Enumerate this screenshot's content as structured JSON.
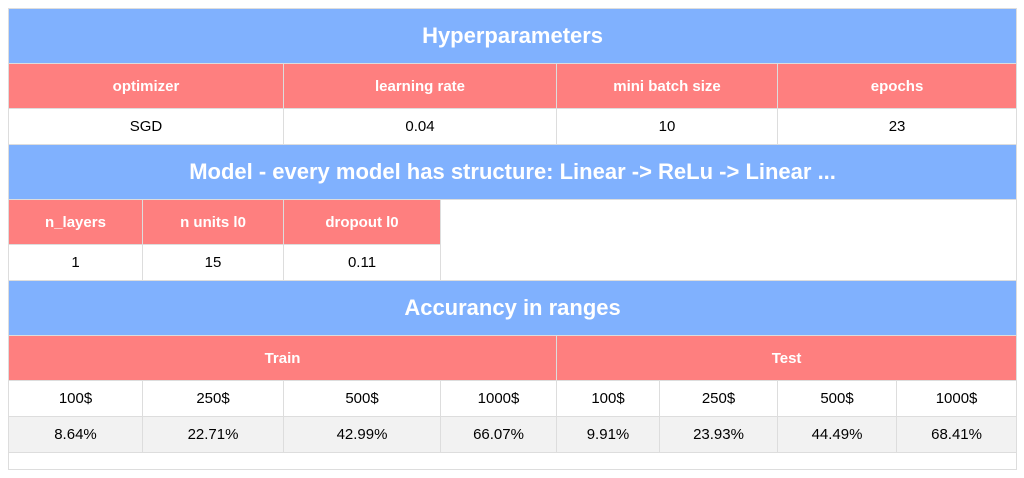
{
  "hyperparameters": {
    "title": "Hyperparameters",
    "headers": [
      "optimizer",
      "learning rate",
      "mini batch size",
      "epochs"
    ],
    "values": [
      "SGD",
      "0.04",
      "10",
      "23"
    ]
  },
  "model": {
    "title": "Model - every model has structure: Linear -> ReLu -> Linear ...",
    "headers": [
      "n_layers",
      "n units l0",
      "dropout l0"
    ],
    "values": [
      "1",
      "15",
      "0.11"
    ]
  },
  "accuracy": {
    "title": "Accurancy in ranges",
    "groups": [
      "Train",
      "Test"
    ],
    "ranges": [
      "100$",
      "250$",
      "500$",
      "1000$",
      "100$",
      "250$",
      "500$",
      "1000$"
    ],
    "values": [
      "8.64%",
      "22.71%",
      "42.99%",
      "66.07%",
      "9.91%",
      "23.93%",
      "44.49%",
      "68.41%"
    ]
  }
}
